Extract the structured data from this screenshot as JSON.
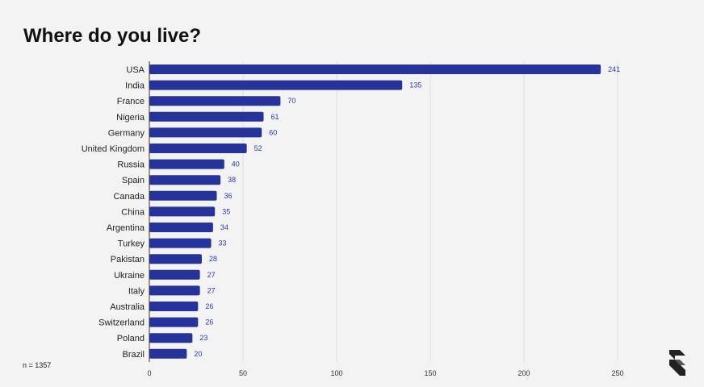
{
  "title": "Where do you live?",
  "note": "n = 1357",
  "colors": {
    "bar": "#26339a",
    "value_label": "#2a3aa8",
    "grid": "#dcdcdc",
    "axis": "#333333"
  },
  "chart_data": {
    "type": "bar",
    "orientation": "horizontal",
    "title": "Where do you live?",
    "categories": [
      "USA",
      "India",
      "France",
      "Nigeria",
      "Germany",
      "United Kingdom",
      "Russia",
      "Spain",
      "Canada",
      "China",
      "Argentina",
      "Turkey",
      "Pakistan",
      "Ukraine",
      "Italy",
      "Australia",
      "Switzerland",
      "Poland",
      "Brazil"
    ],
    "values": [
      241,
      135,
      70,
      61,
      60,
      52,
      40,
      38,
      36,
      35,
      34,
      33,
      28,
      27,
      27,
      26,
      26,
      23,
      20
    ],
    "xlim": [
      0,
      250
    ],
    "xticks": [
      0,
      50,
      100,
      150,
      200,
      250
    ],
    "grid": true,
    "data_labels": true,
    "xlabel": "",
    "ylabel": ""
  }
}
